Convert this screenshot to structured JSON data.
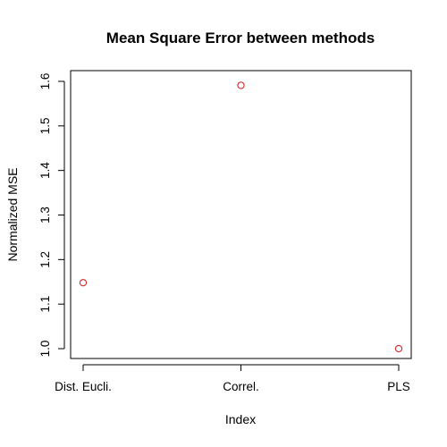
{
  "chart_data": {
    "type": "scatter",
    "title": "Mean Square Error between methods",
    "xlabel": "Index",
    "ylabel": "Normalized MSE",
    "categories": [
      "Dist. Eucli.",
      "Correl.",
      "PLS"
    ],
    "x": [
      1,
      2,
      3
    ],
    "values": [
      1.148,
      1.591,
      1.0
    ],
    "yticks": [
      1.0,
      1.1,
      1.2,
      1.3,
      1.4,
      1.5,
      1.6
    ],
    "ytick_labels": [
      "1.0",
      "1.1",
      "1.2",
      "1.3",
      "1.4",
      "1.5",
      "1.6"
    ],
    "xlim": [
      0.9,
      3.0
    ],
    "ylim": [
      0.976,
      1.615
    ],
    "grid": false,
    "marker": "open-circle",
    "point_color": "#d62728",
    "axis_color": "#000000"
  }
}
